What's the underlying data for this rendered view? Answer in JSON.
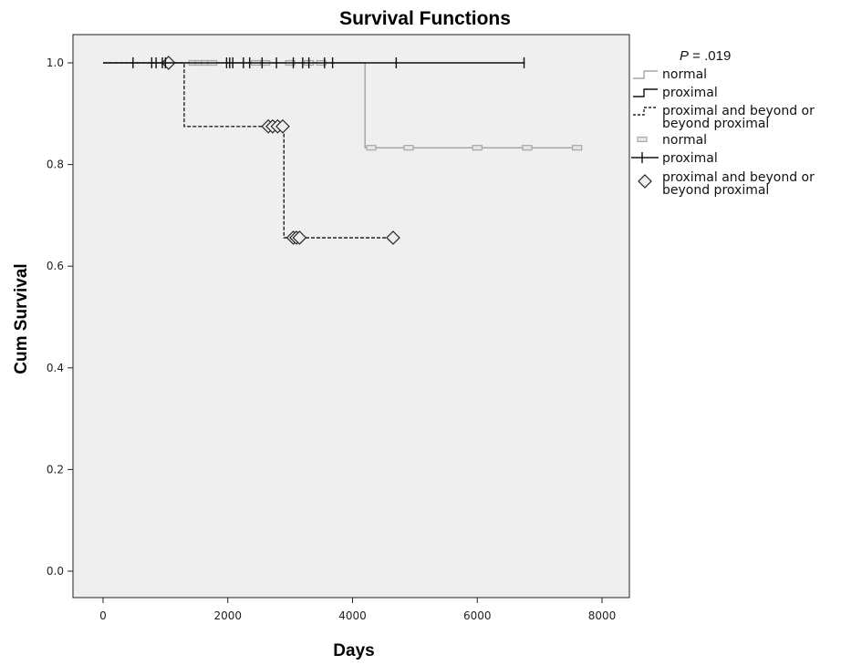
{
  "chart_data": {
    "type": "line",
    "title": "Survival Functions",
    "xlabel": "Days",
    "ylabel": "Cum Survival",
    "xlim": [
      0,
      8000
    ],
    "ylim": [
      0.0,
      1.0
    ],
    "xticks": [
      "0",
      "2000",
      "4000",
      "6000",
      "8000"
    ],
    "yticks": [
      "0.0",
      "0.2",
      "0.4",
      "0.6",
      "0.8",
      "1.0"
    ],
    "annotation": {
      "italic": "P",
      "text": " = .019"
    },
    "series": [
      {
        "name": "normal",
        "style": "step-solid",
        "color": "#a6a6a6",
        "steps": [
          [
            0,
            1.0
          ],
          [
            4200,
            1.0
          ],
          [
            4200,
            0.833
          ],
          [
            7650,
            0.833
          ]
        ],
        "censored": [
          [
            1450,
            1.0
          ],
          [
            1550,
            1.0
          ],
          [
            1650,
            1.0
          ],
          [
            1750,
            1.0
          ],
          [
            2450,
            1.0
          ],
          [
            2600,
            1.0
          ],
          [
            3000,
            1.0
          ],
          [
            3300,
            1.0
          ],
          [
            3500,
            1.0
          ],
          [
            4300,
            0.833
          ],
          [
            4900,
            0.833
          ],
          [
            6000,
            0.833
          ],
          [
            6800,
            0.833
          ],
          [
            7600,
            0.833
          ]
        ]
      },
      {
        "name": "proximal",
        "style": "step-solid",
        "color": "#111111",
        "steps": [
          [
            0,
            1.0
          ],
          [
            6750,
            1.0
          ]
        ],
        "censored": [
          [
            480,
            1.0
          ],
          [
            780,
            1.0
          ],
          [
            850,
            1.0
          ],
          [
            950,
            1.0
          ],
          [
            1000,
            1.0
          ],
          [
            1980,
            1.0
          ],
          [
            2030,
            1.0
          ],
          [
            2080,
            1.0
          ],
          [
            2250,
            1.0
          ],
          [
            2350,
            1.0
          ],
          [
            2550,
            1.0
          ],
          [
            2780,
            1.0
          ],
          [
            3050,
            1.0
          ],
          [
            3200,
            1.0
          ],
          [
            3300,
            1.0
          ],
          [
            3550,
            1.0
          ],
          [
            3680,
            1.0
          ],
          [
            4700,
            1.0
          ],
          [
            6750,
            1.0
          ]
        ]
      },
      {
        "name": "proximal and beyond or beyond proximal",
        "style": "step-dashed",
        "color": "#222222",
        "steps": [
          [
            0,
            1.0
          ],
          [
            1300,
            1.0
          ],
          [
            1300,
            0.875
          ],
          [
            2900,
            0.875
          ],
          [
            2900,
            0.656
          ],
          [
            4650,
            0.656
          ]
        ],
        "censored": [
          [
            1050,
            1.0
          ],
          [
            2650,
            0.875
          ],
          [
            2720,
            0.875
          ],
          [
            2800,
            0.875
          ],
          [
            2880,
            0.875
          ],
          [
            3050,
            0.656
          ],
          [
            3100,
            0.656
          ],
          [
            3150,
            0.656
          ],
          [
            4650,
            0.656
          ]
        ]
      }
    ],
    "legend": {
      "placement": "right",
      "entries": [
        {
          "label": "normal",
          "symbol": "step",
          "series": 0
        },
        {
          "label": "proximal",
          "symbol": "step",
          "series": 1
        },
        {
          "label": "proximal and beyond or beyond proximal",
          "symbol": "step",
          "series": 2
        },
        {
          "label": "normal",
          "symbol": "censor-rect",
          "series": 0
        },
        {
          "label": "proximal",
          "symbol": "censor-plus",
          "series": 1
        },
        {
          "label": "proximal and beyond or beyond proximal",
          "symbol": "censor-diamond",
          "series": 2
        }
      ]
    },
    "background": "#efefef"
  }
}
